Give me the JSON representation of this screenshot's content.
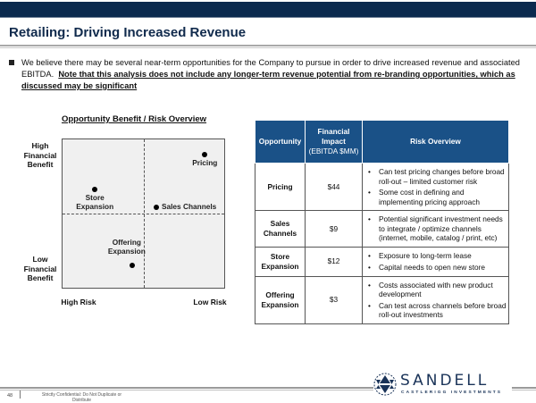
{
  "header": {
    "title": "Retailing: Driving Increased Revenue"
  },
  "intro": {
    "text": "We believe there may be several near-term opportunities for the Company to pursue in order to drive increased revenue and associated EBITDA.",
    "emphasis": "Note that this analysis does not include any longer-term revenue potential from re-branding opportunities, which as discussed may be significant"
  },
  "matrix": {
    "title": "Opportunity Benefit / Risk Overview",
    "y_high": "High Financial Benefit",
    "y_low": "Low Financial Benefit",
    "x_left": "High Risk",
    "x_right": "Low Risk",
    "points": [
      {
        "label": "Pricing",
        "risk_score": 8.8,
        "benefit_score": 9.0
      },
      {
        "label": "Store Expansion",
        "risk_score": 2.0,
        "benefit_score": 6.6
      },
      {
        "label": "Sales Channels",
        "risk_score": 5.8,
        "benefit_score": 5.4
      },
      {
        "label": "Offering Expansion",
        "risk_score": 4.3,
        "benefit_score": 1.5
      }
    ]
  },
  "table": {
    "headers": {
      "opportunity": "Opportunity",
      "impact_1": "Financial Impact",
      "impact_2": "(EBITDA $MM)",
      "risk": "Risk Overview"
    },
    "rows": [
      {
        "opportunity": "Pricing",
        "impact": "$44",
        "risks": [
          "Can test pricing changes before broad  roll-out – limited customer risk",
          "Some cost in defining and implementing pricing approach"
        ]
      },
      {
        "opportunity": "Sales Channels",
        "impact": "$9",
        "risks": [
          "Potential significant investment needs to integrate / optimize channels (internet, mobile, catalog / print, etc)"
        ]
      },
      {
        "opportunity": "Store Expansion",
        "impact": "$12",
        "risks": [
          "Exposure to long-term lease",
          "Capital needs to open new store"
        ]
      },
      {
        "opportunity": "Offering Expansion",
        "impact": "$3",
        "risks": [
          "Costs associated with new product development",
          "Can test across channels before broad roll-out investments"
        ]
      }
    ]
  },
  "footer": {
    "page": "48",
    "confidential": "Strictly Confidential: Do Not Duplicate or Distribute",
    "logo_name": "SANDELL",
    "logo_sub": "CASTLERIGG INVESTMENTS"
  }
}
